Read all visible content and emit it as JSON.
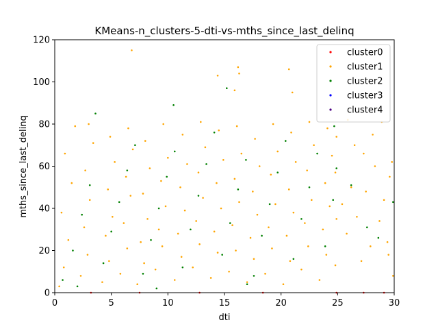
{
  "chart_data": {
    "type": "scatter",
    "title": "KMeans-n_clusters-5-dti-vs-mths_since_last_delinq",
    "xlabel": "dti",
    "ylabel": "mths_since_last_delinq",
    "xlim": [
      0,
      30
    ],
    "ylim": [
      0,
      120
    ],
    "xticks": [
      "0",
      "5",
      "10",
      "15",
      "20",
      "25",
      "30"
    ],
    "yticks": [
      "0",
      "20",
      "40",
      "60",
      "80",
      "100",
      "120"
    ],
    "grid": false,
    "legend_position": "top-right",
    "series": [
      {
        "name": "cluster0",
        "color": "#ff0000",
        "points": [
          [
            3.2,
            0.0
          ],
          [
            7.5,
            0.0
          ],
          [
            12.8,
            0.0
          ],
          [
            18.4,
            0.0
          ],
          [
            24.9,
            0.0
          ],
          [
            27.3,
            0.0
          ],
          [
            29.1,
            0.0
          ]
        ]
      },
      {
        "name": "cluster1",
        "color": "#ffa500",
        "points": [
          [
            0.4,
            3
          ],
          [
            0.8,
            12
          ],
          [
            1.2,
            25
          ],
          [
            0.6,
            38
          ],
          [
            1.5,
            52
          ],
          [
            0.9,
            66
          ],
          [
            1.8,
            79
          ],
          [
            2.3,
            8
          ],
          [
            2.9,
            18
          ],
          [
            2.6,
            31
          ],
          [
            3.1,
            44
          ],
          [
            2.7,
            58
          ],
          [
            3.4,
            71
          ],
          [
            3.0,
            80
          ],
          [
            4.2,
            5
          ],
          [
            4.8,
            15
          ],
          [
            4.5,
            27
          ],
          [
            5.1,
            36
          ],
          [
            4.7,
            49
          ],
          [
            5.3,
            62
          ],
          [
            4.9,
            74
          ],
          [
            5.8,
            9
          ],
          [
            6.4,
            21
          ],
          [
            6.1,
            33
          ],
          [
            6.7,
            46
          ],
          [
            6.3,
            55
          ],
          [
            6.9,
            68
          ],
          [
            6.5,
            78
          ],
          [
            7.3,
            4
          ],
          [
            7.9,
            14
          ],
          [
            7.6,
            24
          ],
          [
            8.2,
            35
          ],
          [
            7.8,
            47
          ],
          [
            8.4,
            59
          ],
          [
            8.0,
            72
          ],
          [
            8.9,
            11
          ],
          [
            9.5,
            22
          ],
          [
            9.2,
            30
          ],
          [
            9.8,
            41
          ],
          [
            9.4,
            53
          ],
          [
            10.0,
            64
          ],
          [
            9.6,
            80
          ],
          [
            10.6,
            6
          ],
          [
            11.2,
            17
          ],
          [
            10.9,
            28
          ],
          [
            11.5,
            39
          ],
          [
            11.1,
            50
          ],
          [
            11.7,
            61
          ],
          [
            11.3,
            75
          ],
          [
            12.2,
            12
          ],
          [
            12.8,
            23
          ],
          [
            12.5,
            34
          ],
          [
            13.1,
            45
          ],
          [
            12.7,
            57
          ],
          [
            13.3,
            69
          ],
          [
            12.9,
            81
          ],
          [
            13.8,
            7
          ],
          [
            14.4,
            19
          ],
          [
            14.1,
            29
          ],
          [
            14.7,
            40
          ],
          [
            14.3,
            52
          ],
          [
            14.9,
            63
          ],
          [
            14.5,
            77
          ],
          [
            15.4,
            10
          ],
          [
            16.0,
            20
          ],
          [
            15.7,
            32
          ],
          [
            16.3,
            43
          ],
          [
            15.9,
            54
          ],
          [
            16.5,
            66
          ],
          [
            16.1,
            79
          ],
          [
            17.0,
            5
          ],
          [
            17.6,
            16
          ],
          [
            17.3,
            26
          ],
          [
            17.9,
            37
          ],
          [
            17.5,
            48
          ],
          [
            18.1,
            60
          ],
          [
            17.7,
            73
          ],
          [
            18.6,
            9
          ],
          [
            19.2,
            21
          ],
          [
            18.9,
            31
          ],
          [
            19.5,
            42
          ],
          [
            19.1,
            56
          ],
          [
            19.7,
            67
          ],
          [
            19.3,
            80
          ],
          [
            20.2,
            4
          ],
          [
            20.8,
            15
          ],
          [
            20.5,
            27
          ],
          [
            21.1,
            38
          ],
          [
            20.7,
            49
          ],
          [
            21.3,
            62
          ],
          [
            20.9,
            76
          ],
          [
            21.8,
            11
          ],
          [
            22.4,
            22
          ],
          [
            22.1,
            33
          ],
          [
            22.7,
            44
          ],
          [
            22.3,
            58
          ],
          [
            22.9,
            70
          ],
          [
            22.5,
            81
          ],
          [
            23.4,
            6
          ],
          [
            24.0,
            18
          ],
          [
            23.7,
            30
          ],
          [
            24.3,
            41
          ],
          [
            23.9,
            52
          ],
          [
            24.5,
            65
          ],
          [
            24.1,
            78
          ],
          [
            24.8,
            13
          ],
          [
            24.9,
            35
          ],
          [
            24.8,
            57
          ],
          [
            24.9,
            74
          ],
          [
            25.4,
            42
          ],
          [
            25.8,
            28
          ],
          [
            26.2,
            50
          ],
          [
            26.7,
            36
          ],
          [
            27.1,
            15
          ],
          [
            27.5,
            48
          ],
          [
            27.9,
            22
          ],
          [
            28.3,
            60
          ],
          [
            28.7,
            34
          ],
          [
            29.1,
            44
          ],
          [
            29.5,
            18
          ],
          [
            29.8,
            62
          ],
          [
            29.9,
            8
          ],
          [
            29.6,
            55
          ],
          [
            26.5,
            70
          ],
          [
            27.3,
            66
          ],
          [
            28.1,
            75
          ],
          [
            28.9,
            81
          ],
          [
            25.9,
            82
          ],
          [
            29.4,
            24
          ],
          [
            6.8,
            115
          ],
          [
            14.4,
            103
          ],
          [
            16.2,
            107
          ],
          [
            16.3,
            104
          ],
          [
            15.9,
            96
          ],
          [
            20.7,
            106
          ],
          [
            21.0,
            95
          ]
        ]
      },
      {
        "name": "cluster2",
        "color": "#008000",
        "points": [
          [
            0.7,
            6
          ],
          [
            1.6,
            20
          ],
          [
            2.4,
            37
          ],
          [
            3.1,
            51
          ],
          [
            3.6,
            85
          ],
          [
            4.3,
            14
          ],
          [
            5.0,
            29
          ],
          [
            5.7,
            43
          ],
          [
            6.4,
            58
          ],
          [
            7.1,
            70
          ],
          [
            7.8,
            9
          ],
          [
            8.5,
            25
          ],
          [
            9.2,
            40
          ],
          [
            9.9,
            55
          ],
          [
            10.5,
            89
          ],
          [
            10.6,
            67
          ],
          [
            11.3,
            12
          ],
          [
            12.0,
            30
          ],
          [
            12.7,
            46
          ],
          [
            13.4,
            61
          ],
          [
            14.1,
            76
          ],
          [
            14.8,
            18
          ],
          [
            15.2,
            97
          ],
          [
            15.5,
            33
          ],
          [
            16.2,
            49
          ],
          [
            16.9,
            63
          ],
          [
            17.6,
            8
          ],
          [
            18.3,
            27
          ],
          [
            19.0,
            42
          ],
          [
            19.7,
            57
          ],
          [
            20.4,
            72
          ],
          [
            21.1,
            16
          ],
          [
            21.8,
            35
          ],
          [
            22.5,
            50
          ],
          [
            23.2,
            66
          ],
          [
            23.9,
            22
          ],
          [
            24.6,
            44
          ],
          [
            24.9,
            59
          ],
          [
            24.7,
            79
          ],
          [
            2.0,
            3
          ],
          [
            9.0,
            2
          ],
          [
            17.0,
            4
          ],
          [
            26.2,
            51
          ],
          [
            27.6,
            31
          ],
          [
            28.6,
            26
          ],
          [
            29.9,
            43
          ]
        ]
      },
      {
        "name": "cluster3",
        "color": "#0000ff",
        "points": []
      },
      {
        "name": "cluster4",
        "color": "#4b0082",
        "points": []
      }
    ]
  }
}
